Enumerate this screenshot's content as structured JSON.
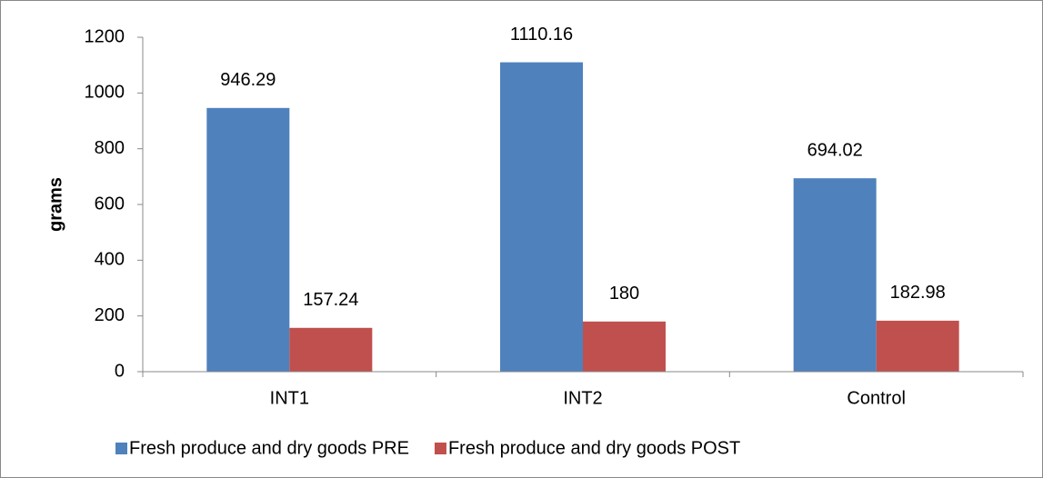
{
  "chart_data": {
    "type": "bar",
    "ylabel": "grams",
    "categories": [
      "INT1",
      "INT2",
      "Control"
    ],
    "series": [
      {
        "name": "Fresh produce and dry goods PRE",
        "color": "#4f81bd",
        "values": [
          946.29,
          1110.16,
          694.02
        ]
      },
      {
        "name": "Fresh produce and dry goods POST",
        "color": "#c0504d",
        "values": [
          157.24,
          180,
          182.98
        ]
      }
    ],
    "ylim": [
      0,
      1200
    ],
    "yticks": [
      0,
      200,
      400,
      600,
      800,
      1000,
      1200
    ],
    "grid": false,
    "legend": "bottom"
  }
}
